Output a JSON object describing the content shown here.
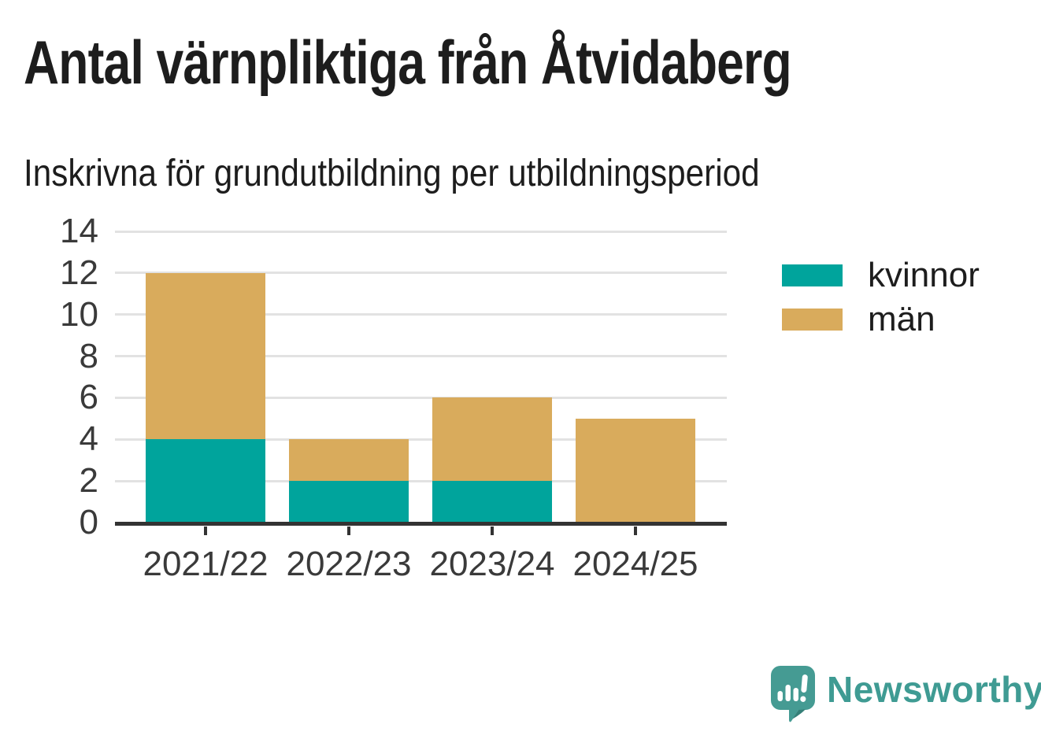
{
  "header": {
    "title": "Antal värnpliktiga från Åtvidaberg",
    "subtitle": "Inskrivna för grundutbildning per utbildningsperiod"
  },
  "chart_data": {
    "type": "bar",
    "stacked": true,
    "categories": [
      "2021/22",
      "2022/23",
      "2023/24",
      "2024/25"
    ],
    "series": [
      {
        "name": "kvinnor",
        "color": "#00a49c",
        "values": [
          4,
          2,
          2,
          0
        ]
      },
      {
        "name": "män",
        "color": "#d9ab5c",
        "values": [
          8,
          2,
          4,
          5
        ]
      }
    ],
    "totals": [
      12,
      4,
      6,
      5
    ],
    "title": "Antal värnpliktiga från Åtvidaberg",
    "subtitle": "Inskrivna för grundutbildning per utbildningsperiod",
    "xlabel": "",
    "ylabel": "",
    "ylim": [
      0,
      14
    ],
    "yticks": [
      0,
      2,
      4,
      6,
      8,
      10,
      12,
      14
    ],
    "grid": true,
    "legend_position": "right",
    "axis_text_color": "#3a3a3a",
    "grid_color": "#e2e2e2",
    "baseline_color": "#333333"
  },
  "footer": {
    "brand": "Newsworthy",
    "brand_color": "#3f9b93",
    "logo_icon": "newsworthy-speech-bubble-bar-chart-icon",
    "logo_color": "#459b93"
  }
}
